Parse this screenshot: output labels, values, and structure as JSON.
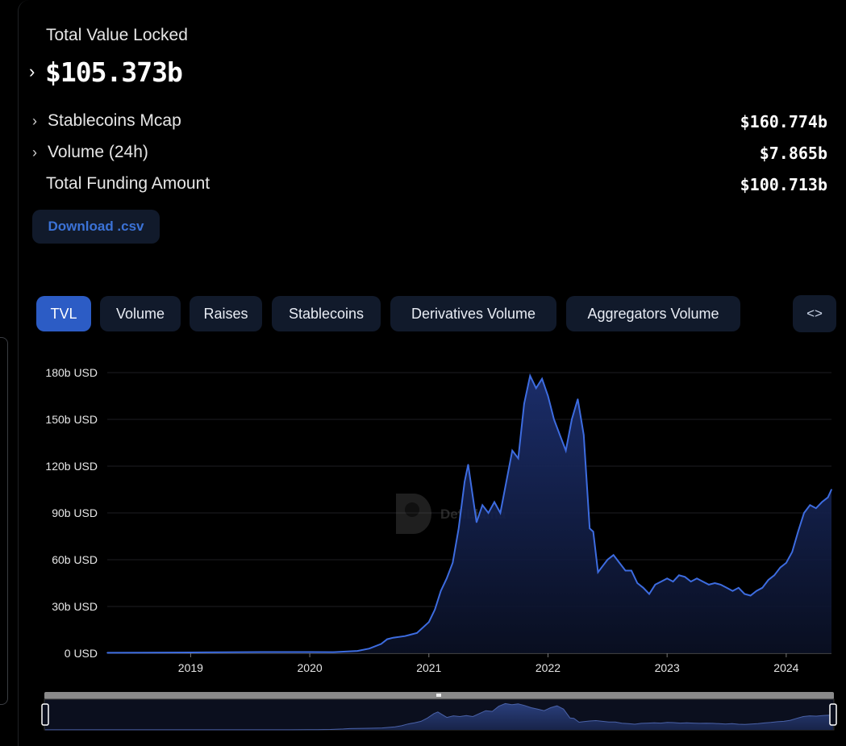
{
  "summary": {
    "tvl_label": "Total Value Locked",
    "tvl_value": "$105.373b",
    "rows": [
      {
        "label": "Stablecoins Mcap",
        "value": "$160.774b",
        "expandable": true
      },
      {
        "label": "Volume (24h)",
        "value": "$7.865b",
        "expandable": true
      },
      {
        "label": "Total Funding Amount",
        "value": "$100.713b",
        "expandable": false
      }
    ],
    "download_label": "Download .csv"
  },
  "tabs": [
    {
      "label": "TVL",
      "active": true
    },
    {
      "label": "Volume",
      "active": false
    },
    {
      "label": "Raises",
      "active": false
    },
    {
      "label": "Stablecoins",
      "active": false
    },
    {
      "label": "Derivatives Volume",
      "active": false
    },
    {
      "label": "Aggregators Volume",
      "active": false
    }
  ],
  "embed_icon": "code-icon",
  "watermark_text": "DefiLlama",
  "colors": {
    "line": "#3d6ce0",
    "active_tab": "#2c5cc5",
    "tab_bg": "#111a2b",
    "link": "#3b72d6"
  },
  "chart_data": {
    "type": "area",
    "title": "",
    "xlabel": "",
    "ylabel": "",
    "ylim": [
      0,
      180
    ],
    "xlim": [
      2018.3,
      2024.38
    ],
    "y_ticks": [
      "0 USD",
      "30b USD",
      "60b USD",
      "90b USD",
      "120b USD",
      "150b USD",
      "180b USD"
    ],
    "y_tick_values": [
      0,
      30,
      60,
      90,
      120,
      150,
      180
    ],
    "x_ticks": [
      "2019",
      "2020",
      "2021",
      "2022",
      "2023",
      "2024"
    ],
    "x_tick_values": [
      2019,
      2020,
      2021,
      2022,
      2023,
      2024
    ],
    "grid": true,
    "legend": "none",
    "series": [
      {
        "x": [
          2018.3,
          2018.6,
          2019.0,
          2019.3,
          2019.6,
          2020.0,
          2020.2,
          2020.4,
          2020.5,
          2020.6,
          2020.65,
          2020.7,
          2020.8,
          2020.9,
          2021.0,
          2021.05,
          2021.1,
          2021.15,
          2021.2,
          2021.25,
          2021.3,
          2021.33,
          2021.37,
          2021.4,
          2021.45,
          2021.5,
          2021.55,
          2021.6,
          2021.65,
          2021.7,
          2021.75,
          2021.8,
          2021.85,
          2021.9,
          2021.95,
          2022.0,
          2022.05,
          2022.1,
          2022.15,
          2022.2,
          2022.25,
          2022.3,
          2022.35,
          2022.38,
          2022.42,
          2022.45,
          2022.5,
          2022.55,
          2022.6,
          2022.65,
          2022.7,
          2022.75,
          2022.8,
          2022.85,
          2022.9,
          2022.95,
          2023.0,
          2023.05,
          2023.1,
          2023.15,
          2023.2,
          2023.25,
          2023.3,
          2023.35,
          2023.4,
          2023.45,
          2023.5,
          2023.55,
          2023.6,
          2023.65,
          2023.7,
          2023.75,
          2023.8,
          2023.85,
          2023.9,
          2023.95,
          2024.0,
          2024.05,
          2024.1,
          2024.15,
          2024.2,
          2024.25,
          2024.3,
          2024.35,
          2024.38
        ],
        "values": [
          0.3,
          0.4,
          0.5,
          0.6,
          0.8,
          0.8,
          0.7,
          1.5,
          3,
          6,
          9,
          10,
          11,
          13,
          20,
          28,
          40,
          48,
          58,
          80,
          110,
          121,
          100,
          84,
          95,
          90,
          97,
          90,
          110,
          130,
          125,
          160,
          178,
          170,
          176,
          165,
          150,
          140,
          130,
          150,
          163,
          140,
          80,
          78,
          52,
          55,
          60,
          63,
          58,
          53,
          53,
          45,
          42,
          38,
          44,
          46,
          48,
          46,
          50,
          49,
          46,
          48,
          46,
          44,
          45,
          44,
          42,
          40,
          42,
          38,
          37,
          40,
          42,
          47,
          50,
          55,
          58,
          65,
          78,
          90,
          95,
          93,
          97,
          100,
          105
        ]
      }
    ]
  }
}
